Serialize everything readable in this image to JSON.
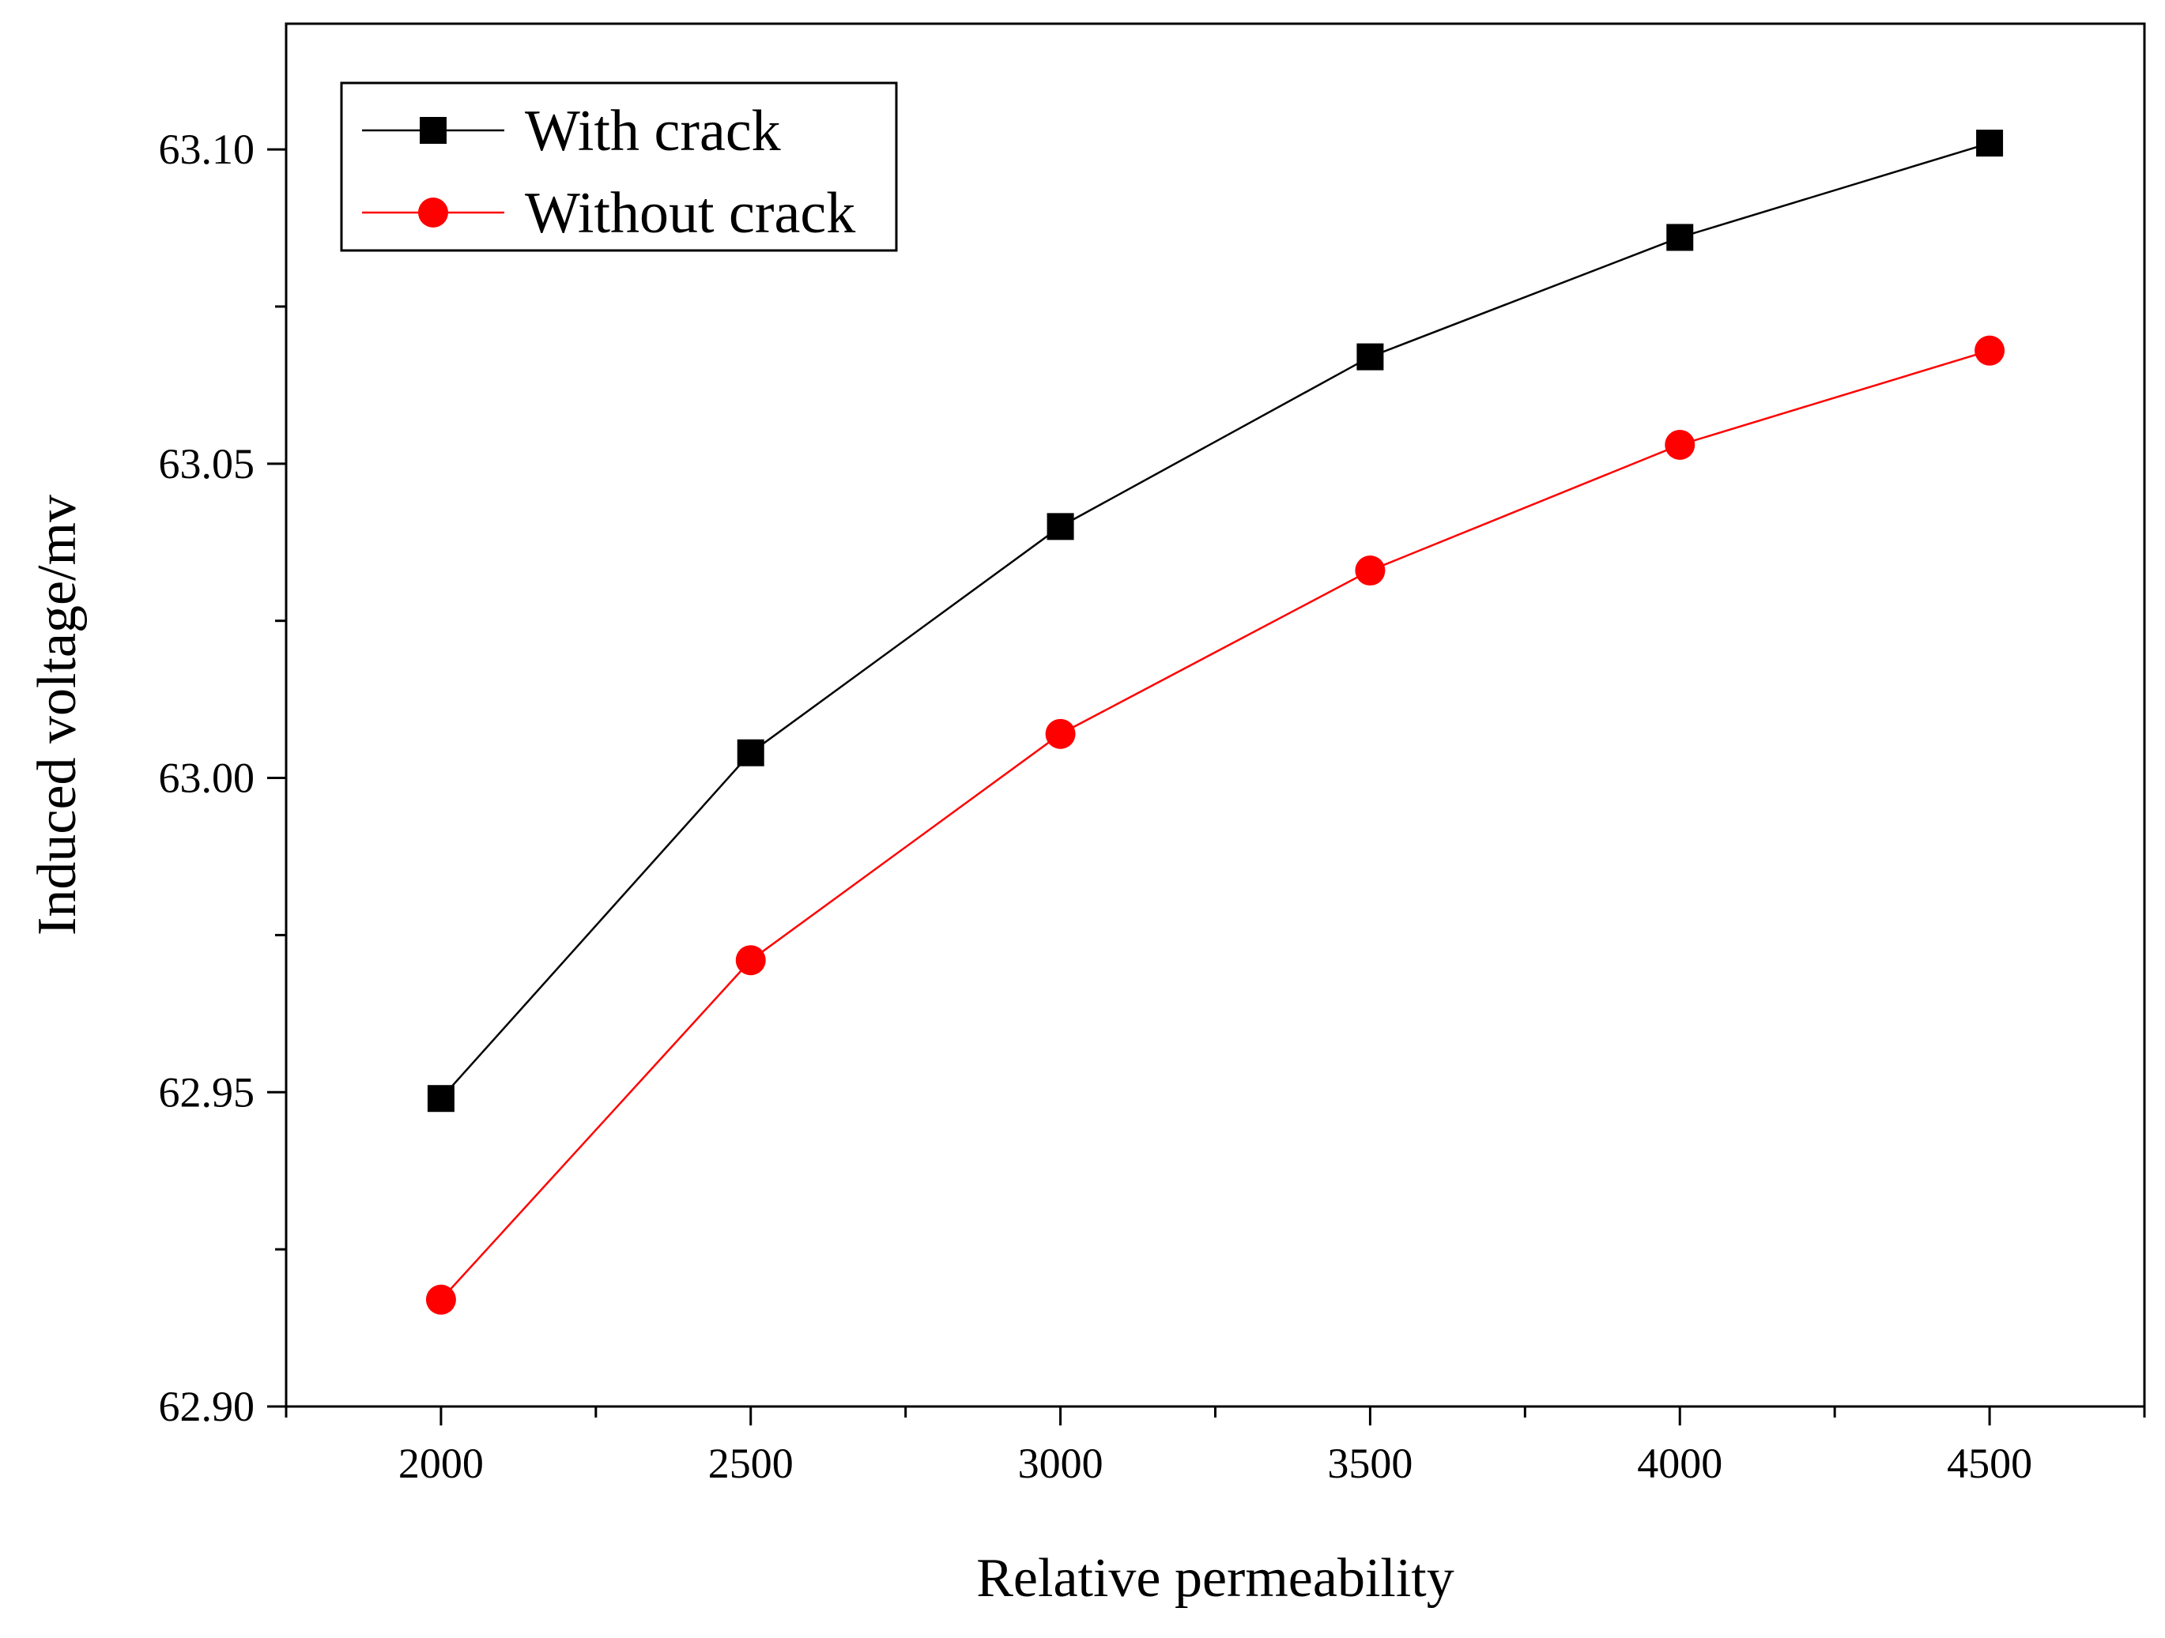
{
  "chart_data": {
    "type": "line",
    "title": "",
    "xlabel": "Relative permeability",
    "ylabel": "Induced voltage/mv",
    "x": [
      2000,
      2500,
      3000,
      3500,
      4000,
      4500
    ],
    "xlim": [
      1750,
      4750
    ],
    "ylim": [
      62.9,
      63.12
    ],
    "x_ticks": [
      "2000",
      "2500",
      "3000",
      "3500",
      "4000",
      "4500"
    ],
    "x_tick_values": [
      2000,
      2500,
      3000,
      3500,
      4000,
      4500
    ],
    "y_ticks": [
      "62.90",
      "62.95",
      "63.00",
      "63.05",
      "63.10"
    ],
    "y_tick_values": [
      62.9,
      62.95,
      63.0,
      63.05,
      63.1
    ],
    "grid": false,
    "legend_position": "top-left",
    "series": [
      {
        "name": "With crack",
        "color": "#000000",
        "marker": "square",
        "values": [
          62.949,
          63.004,
          63.04,
          63.067,
          63.086,
          63.101
        ]
      },
      {
        "name": "Without crack",
        "color": "#ff0000",
        "marker": "circle",
        "values": [
          62.917,
          62.971,
          63.007,
          63.033,
          63.053,
          63.068
        ]
      }
    ]
  }
}
